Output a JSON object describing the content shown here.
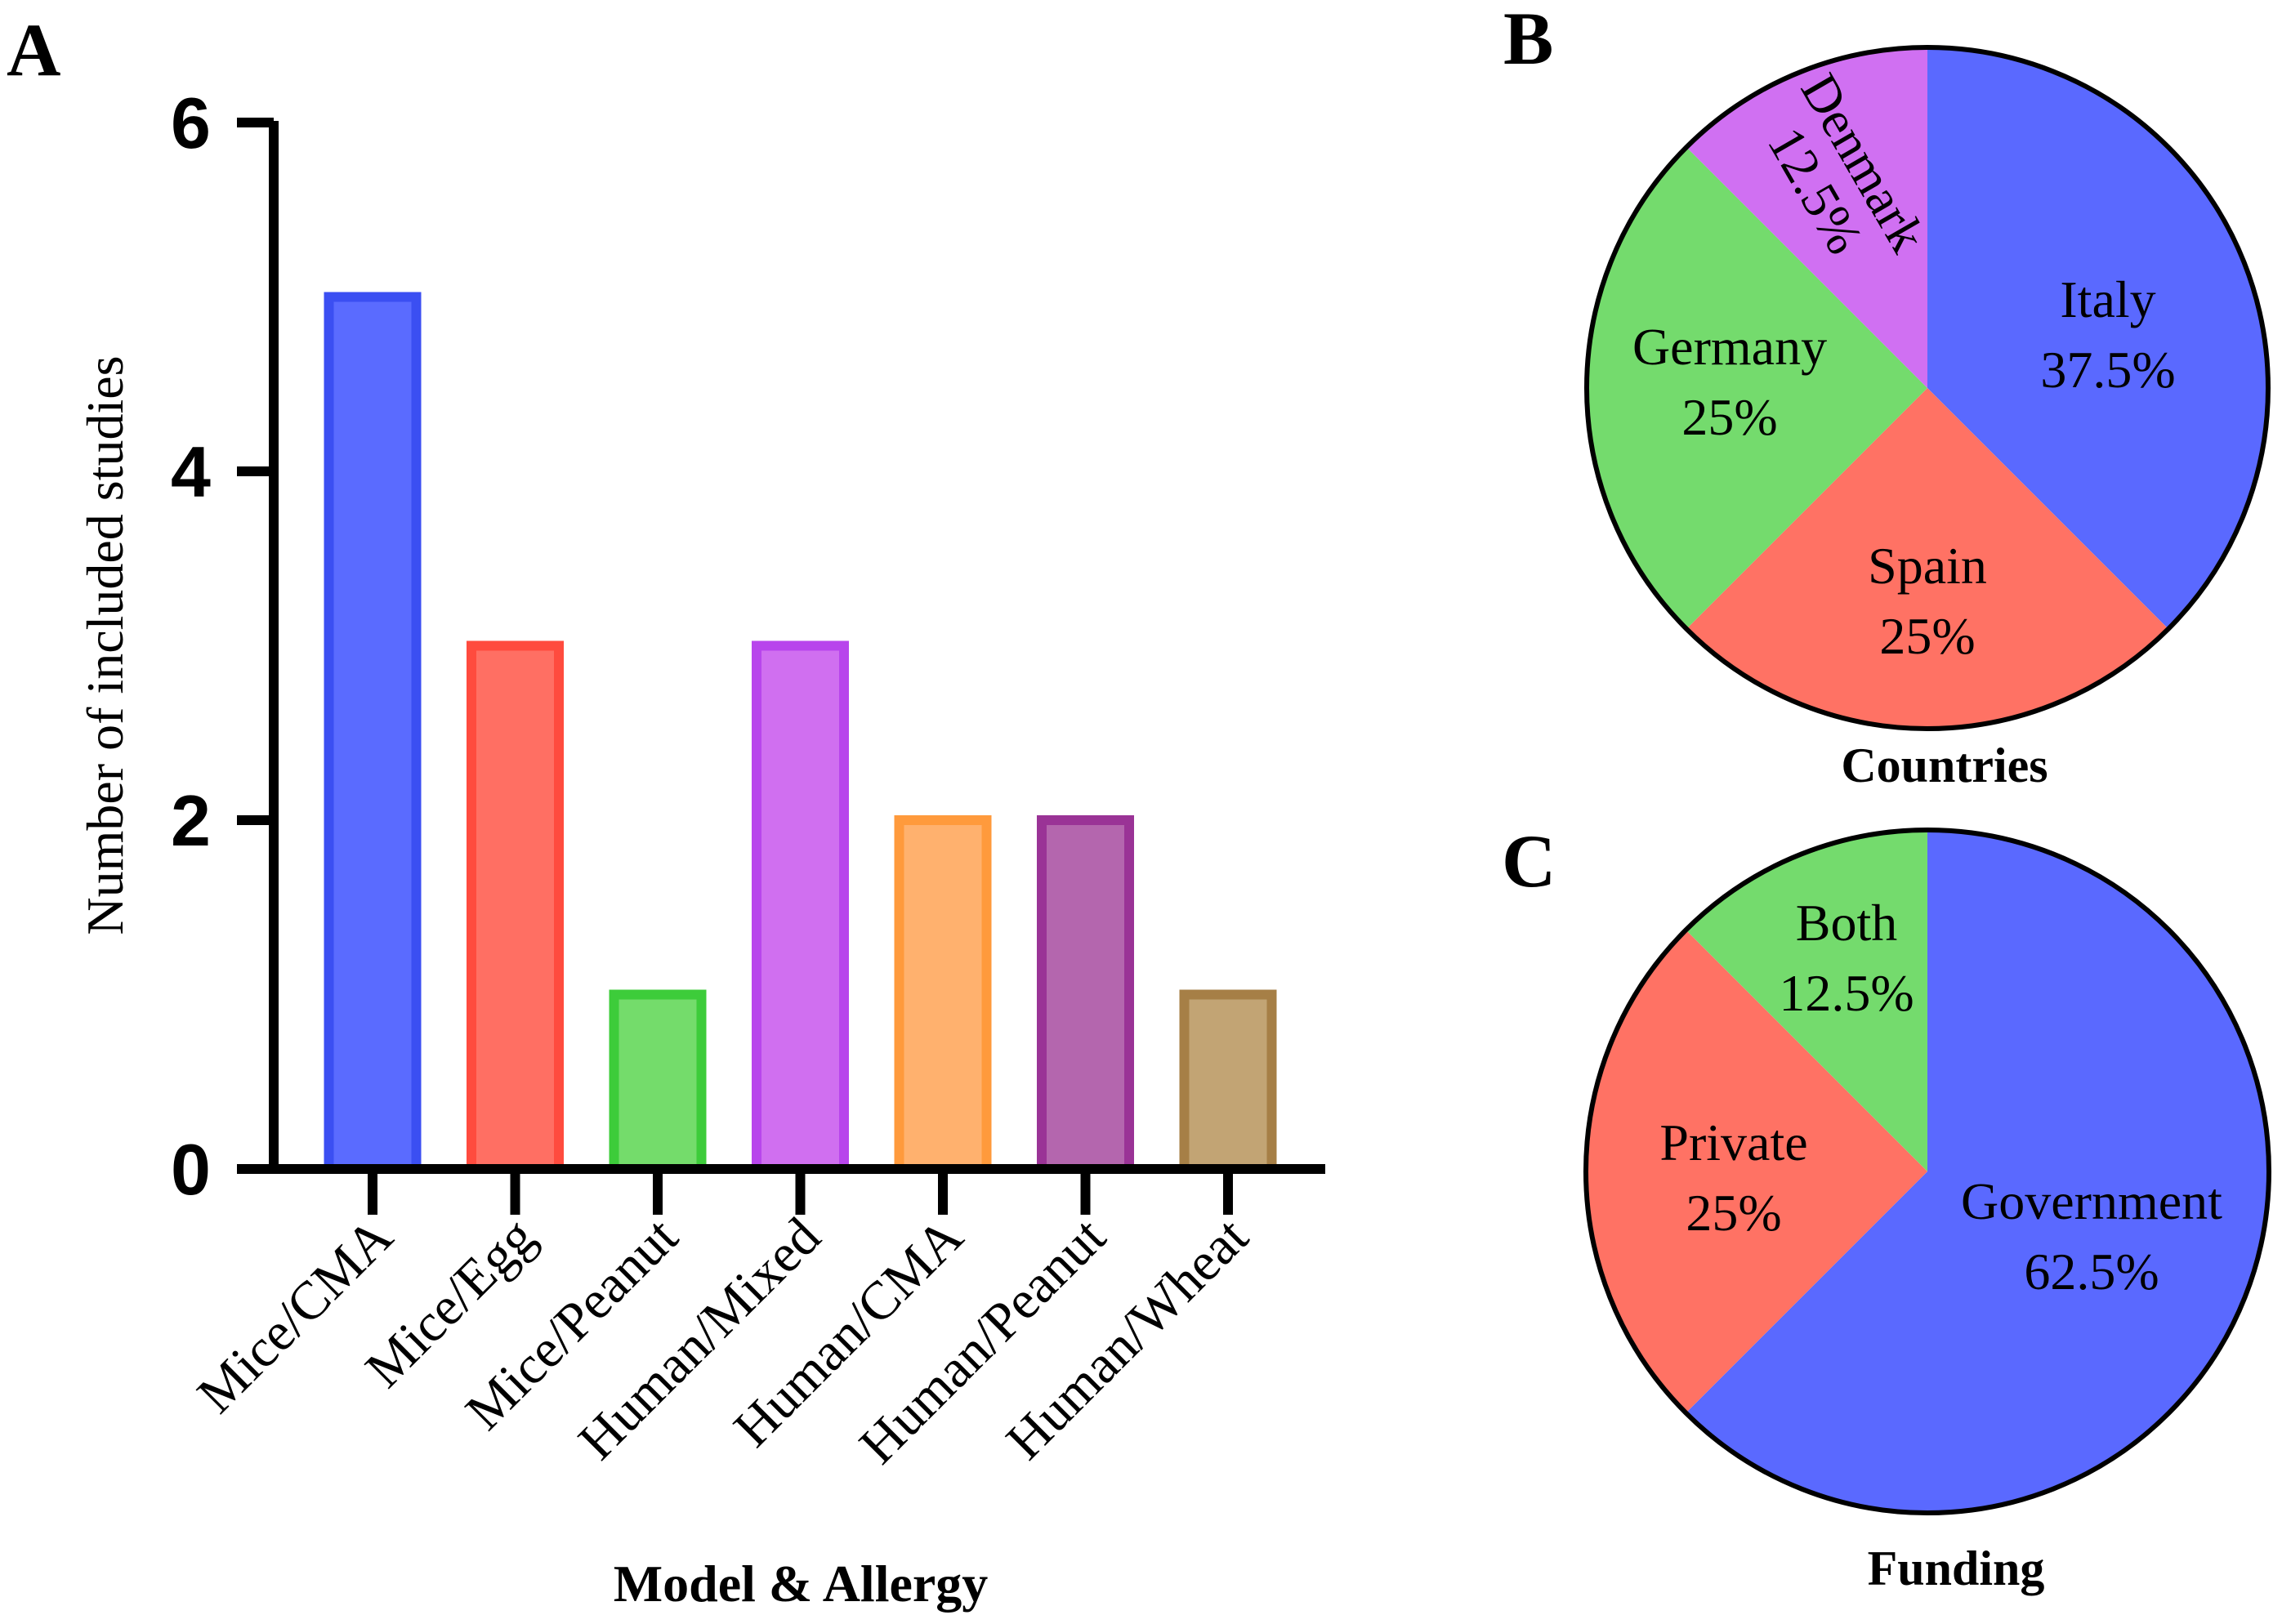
{
  "panels": {
    "a": "A",
    "b": "B",
    "c": "C"
  },
  "chart_data": [
    {
      "type": "bar",
      "panel": "A",
      "categories": [
        "Mice/CMA",
        "Mice/Egg",
        "Mice/Peanut",
        "Human/Mixed",
        "Human/CMA",
        "Human/Peanut",
        "Human/Wheat"
      ],
      "values": [
        5,
        3,
        1,
        3,
        2,
        2,
        1
      ],
      "colors": [
        "#3b4ff2",
        "#ff4b3e",
        "#3dcc3a",
        "#b845ec",
        "#ff9a3c",
        "#9a3396",
        "#a67f46"
      ],
      "fills": [
        "#5a6bff",
        "#ff6f63",
        "#74dc6b",
        "#d06ff0",
        "#ffb16e",
        "#b466ae",
        "#c2a474"
      ],
      "ylabel": "Number of included studies",
      "xlabel": "Model & Allergy",
      "ylim": [
        0,
        6
      ],
      "yticks": [
        "0",
        "2",
        "4",
        "6"
      ]
    },
    {
      "type": "pie",
      "panel": "B",
      "title": "Countries",
      "slices": [
        {
          "label": "Italy",
          "pct": "37.5%",
          "value": 37.5,
          "color": "#5a69ff"
        },
        {
          "label": "Spain",
          "pct": "25%",
          "value": 25,
          "color": "#ff7264"
        },
        {
          "label": "Germany",
          "pct": "25%",
          "value": 25,
          "color": "#74db6d"
        },
        {
          "label": "Denmark",
          "pct": "12.5%",
          "value": 12.5,
          "color": "#d070f2"
        }
      ]
    },
    {
      "type": "pie",
      "panel": "C",
      "title": "Funding",
      "slices": [
        {
          "label": "Government",
          "pct": "62.5%",
          "value": 62.5,
          "color": "#5a69ff"
        },
        {
          "label": "Private",
          "pct": "25%",
          "value": 25,
          "color": "#ff7264"
        },
        {
          "label": "Both",
          "pct": "12.5%",
          "value": 12.5,
          "color": "#74db6d"
        }
      ]
    }
  ]
}
